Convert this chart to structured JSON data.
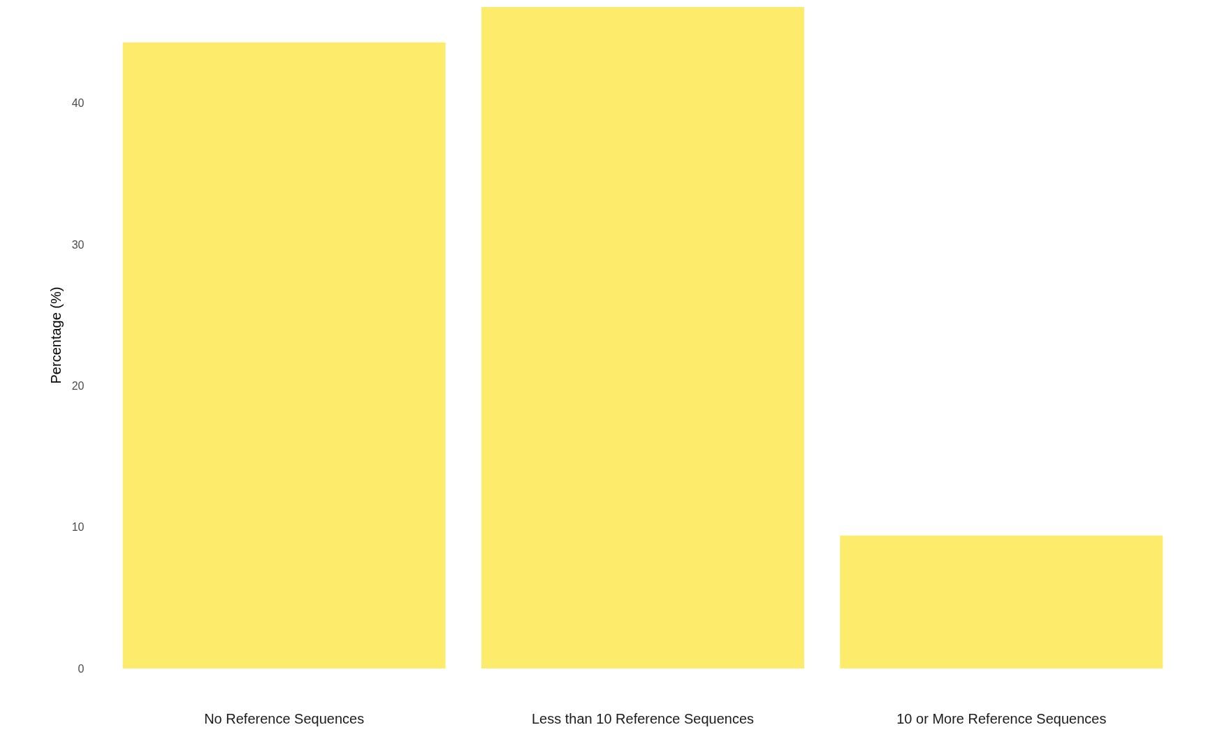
{
  "chart_data": {
    "type": "bar",
    "ylabel": "Percentage (%)",
    "categories": [
      "No Reference Sequences",
      "Less than 10 Reference Sequences",
      "10 or More Reference Sequences"
    ],
    "values": [
      44.3,
      46.8,
      9.4
    ],
    "color": "#fdec6b",
    "ylim": [
      0,
      47.2
    ],
    "yticks": [
      0,
      10,
      20,
      30,
      40
    ],
    "grid": false
  }
}
